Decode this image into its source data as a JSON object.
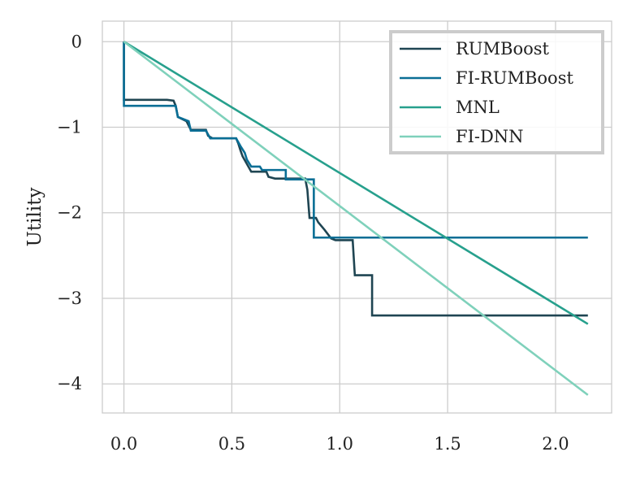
{
  "chart_data": {
    "type": "line",
    "title": "",
    "xlabel": "",
    "ylabel": "Utility",
    "xlim": [
      -0.1,
      2.26
    ],
    "ylim": [
      -4.34,
      0.24
    ],
    "xticks": [
      0.0,
      0.5,
      1.0,
      1.5,
      2.0
    ],
    "xtick_labels": [
      "0.0",
      "0.5",
      "1.0",
      "1.5",
      "2.0"
    ],
    "yticks": [
      0,
      -1,
      -2,
      -3,
      -4
    ],
    "ytick_labels": [
      "0",
      "−1",
      "−2",
      "−3",
      "−4"
    ],
    "grid": true,
    "legend_position": "top-right",
    "series": [
      {
        "name": "RUMBoost",
        "color": "#1f4552",
        "step": true,
        "points": [
          [
            0,
            0
          ],
          [
            0,
            -0.68
          ],
          [
            0.2,
            -0.68
          ],
          [
            0.23,
            -0.69
          ],
          [
            0.24,
            -0.75
          ],
          [
            0.25,
            -0.88
          ],
          [
            0.29,
            -0.93
          ],
          [
            0.31,
            -1.03
          ],
          [
            0.38,
            -1.03
          ],
          [
            0.39,
            -1.1
          ],
          [
            0.41,
            -1.13
          ],
          [
            0.52,
            -1.13
          ],
          [
            0.53,
            -1.19
          ],
          [
            0.54,
            -1.27
          ],
          [
            0.55,
            -1.34
          ],
          [
            0.57,
            -1.43
          ],
          [
            0.59,
            -1.52
          ],
          [
            0.66,
            -1.52
          ],
          [
            0.67,
            -1.58
          ],
          [
            0.7,
            -1.6
          ],
          [
            0.84,
            -1.6
          ],
          [
            0.85,
            -1.73
          ],
          [
            0.86,
            -2.06
          ],
          [
            0.89,
            -2.06
          ],
          [
            0.9,
            -2.11
          ],
          [
            0.93,
            -2.2
          ],
          [
            0.96,
            -2.3
          ],
          [
            0.98,
            -2.32
          ],
          [
            1.06,
            -2.32
          ],
          [
            1.07,
            -2.73
          ],
          [
            1.15,
            -2.73
          ],
          [
            1.15,
            -3.2
          ],
          [
            2.15,
            -3.2
          ]
        ]
      },
      {
        "name": "FI-RUMBoost",
        "color": "#0a6e95",
        "step": true,
        "points": [
          [
            0,
            0
          ],
          [
            0,
            -0.75
          ],
          [
            0.24,
            -0.75
          ],
          [
            0.25,
            -0.88
          ],
          [
            0.3,
            -0.93
          ],
          [
            0.31,
            -1.04
          ],
          [
            0.38,
            -1.04
          ],
          [
            0.4,
            -1.13
          ],
          [
            0.52,
            -1.13
          ],
          [
            0.54,
            -1.22
          ],
          [
            0.56,
            -1.3
          ],
          [
            0.57,
            -1.38
          ],
          [
            0.59,
            -1.46
          ],
          [
            0.63,
            -1.46
          ],
          [
            0.64,
            -1.5
          ],
          [
            0.75,
            -1.5
          ],
          [
            0.75,
            -1.61
          ],
          [
            0.88,
            -1.61
          ],
          [
            0.88,
            -2.29
          ],
          [
            2.15,
            -2.29
          ]
        ]
      },
      {
        "name": "MNL",
        "color": "#27a08d",
        "step": false,
        "points": [
          [
            0,
            0
          ],
          [
            2.15,
            -3.3
          ]
        ]
      },
      {
        "name": "FI-DNN",
        "color": "#7fd1bb",
        "step": false,
        "points": [
          [
            0,
            0
          ],
          [
            2.15,
            -4.13
          ]
        ]
      }
    ]
  }
}
